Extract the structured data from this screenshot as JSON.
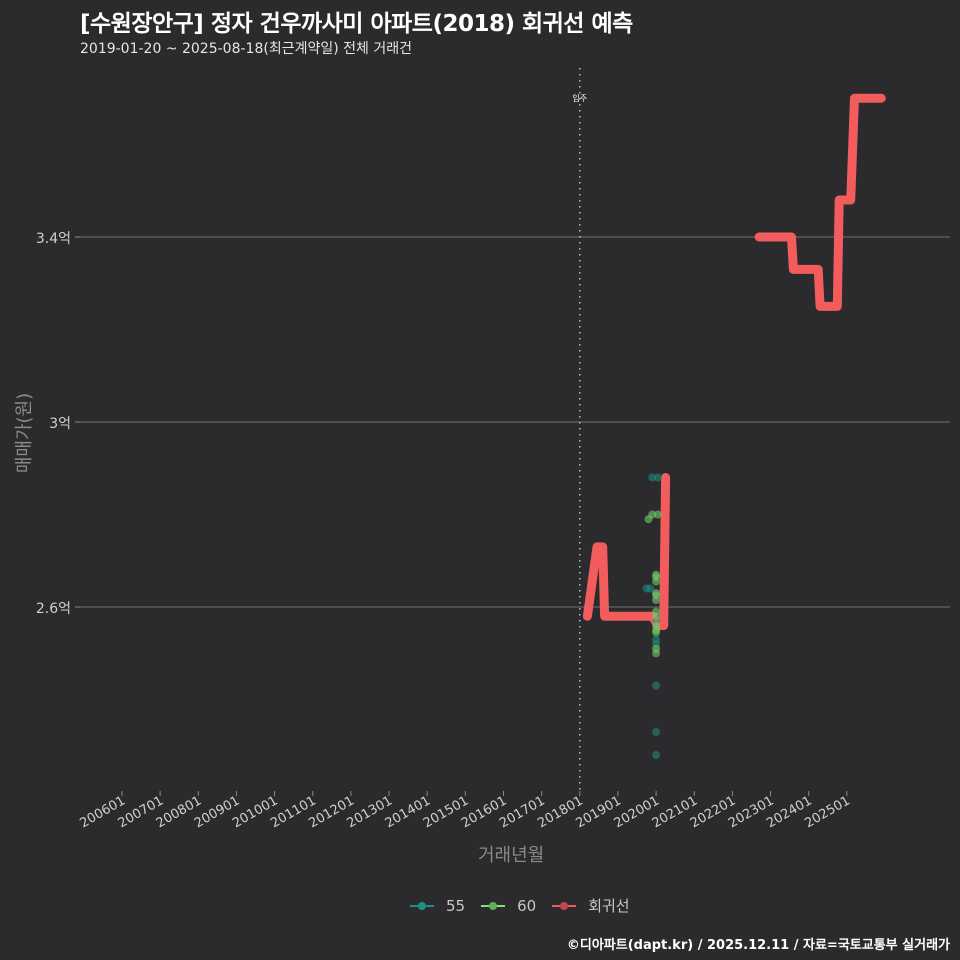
{
  "header": {
    "title": "[수원장안구] 정자 건우까사미 아파트(2018) 회귀선 예측",
    "subtitle": "2019-01-20 ~ 2025-08-18(최근계약일) 전체 거래건"
  },
  "axes": {
    "ylabel": "매매가(원)",
    "xlabel": "거래년월",
    "move_in_label": "입주"
  },
  "legend": {
    "items": [
      {
        "label": "55",
        "color": "#1f8f84"
      },
      {
        "label": "60",
        "color": "#7fe07a"
      },
      {
        "label": "회귀선",
        "color": "#f25c5c"
      }
    ]
  },
  "caption": "©디아파트(dapt.kr) / 2025.12.11 / 자료=국토교통부 실거래가",
  "chart_data": {
    "type": "scatter",
    "title": "[수원장안구] 정자 건우까사미 아파트(2018) 회귀선 예측",
    "subtitle": "2019-01-20 ~ 2025-08-18(최근계약일) 전체 거래건",
    "xlabel": "거래년월",
    "ylabel": "매매가(원)",
    "x_ticks": [
      "200601",
      "200701",
      "200801",
      "200901",
      "201001",
      "201101",
      "201201",
      "201301",
      "201401",
      "201501",
      "201601",
      "201701",
      "201801",
      "201901",
      "202001",
      "202101",
      "202201",
      "202301",
      "202401",
      "202501"
    ],
    "y_ticks": [
      {
        "value": 2.6,
        "label": "2.6억"
      },
      {
        "value": 3.0,
        "label": "3억"
      },
      {
        "value": 3.4,
        "label": "3.4억"
      }
    ],
    "ylim": [
      2.2,
      3.75
    ],
    "xlim": [
      2005.0,
      2026.0
    ],
    "grid": "horizontal",
    "legend_position": "bottom",
    "vline": {
      "x": 2018.0,
      "label": "입주",
      "style": "dotted"
    },
    "series": [
      {
        "name": "55",
        "type": "scatter",
        "color": "#1f8f84",
        "points": [
          {
            "x": 2019.9,
            "y": 2.88
          },
          {
            "x": 2020.05,
            "y": 2.88
          },
          {
            "x": 2019.75,
            "y": 2.64
          },
          {
            "x": 2019.85,
            "y": 2.64
          },
          {
            "x": 2020.0,
            "y": 2.53
          },
          {
            "x": 2020.0,
            "y": 2.52
          },
          {
            "x": 2020.0,
            "y": 2.57
          },
          {
            "x": 2020.0,
            "y": 2.43
          },
          {
            "x": 2020.0,
            "y": 2.33
          },
          {
            "x": 2020.0,
            "y": 2.28
          }
        ]
      },
      {
        "name": "60",
        "type": "scatter",
        "color": "#7fe07a",
        "points": [
          {
            "x": 2019.8,
            "y": 2.79
          },
          {
            "x": 2019.9,
            "y": 2.8
          },
          {
            "x": 2020.05,
            "y": 2.8
          },
          {
            "x": 2020.0,
            "y": 2.67
          },
          {
            "x": 2020.0,
            "y": 2.665
          },
          {
            "x": 2020.0,
            "y": 2.655
          },
          {
            "x": 2020.0,
            "y": 2.63
          },
          {
            "x": 2020.0,
            "y": 2.625
          },
          {
            "x": 2020.0,
            "y": 2.615
          },
          {
            "x": 2020.0,
            "y": 2.59
          },
          {
            "x": 2020.0,
            "y": 2.58
          },
          {
            "x": 2020.0,
            "y": 2.56
          },
          {
            "x": 2020.0,
            "y": 2.55
          },
          {
            "x": 2020.0,
            "y": 2.545
          },
          {
            "x": 2020.0,
            "y": 2.51
          },
          {
            "x": 2020.0,
            "y": 2.5
          }
        ]
      },
      {
        "name": "회귀선",
        "type": "line",
        "color": "#f25c5c",
        "points": [
          {
            "x": 2018.2,
            "y": 2.58
          },
          {
            "x": 2018.45,
            "y": 2.73
          },
          {
            "x": 2018.6,
            "y": 2.73
          },
          {
            "x": 2018.65,
            "y": 2.58
          },
          {
            "x": 2019.9,
            "y": 2.58
          },
          {
            "x": 2020.05,
            "y": 2.56
          },
          {
            "x": 2020.2,
            "y": 2.56
          },
          {
            "x": 2020.25,
            "y": 2.88
          },
          {
            "x": 2022.7,
            "y": 3.4
          },
          {
            "x": 2023.55,
            "y": 3.4
          },
          {
            "x": 2023.6,
            "y": 3.33
          },
          {
            "x": 2024.25,
            "y": 3.33
          },
          {
            "x": 2024.3,
            "y": 3.25
          },
          {
            "x": 2024.75,
            "y": 3.25
          },
          {
            "x": 2024.8,
            "y": 3.48
          },
          {
            "x": 2025.1,
            "y": 3.48
          },
          {
            "x": 2025.2,
            "y": 3.7
          },
          {
            "x": 2025.9,
            "y": 3.7
          }
        ],
        "segments_break_after_index": 7
      }
    ]
  }
}
